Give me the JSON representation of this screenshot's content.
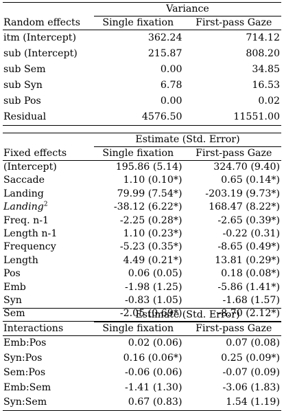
{
  "random": {
    "span_header": "Variance",
    "col0": "Random effects",
    "col1": "Single fixation",
    "col2": "First-pass Gaze",
    "rows": [
      {
        "label": "itm (Intercept)",
        "v1": "362.24",
        "v2": "714.12"
      },
      {
        "label": "sub (Intercept)",
        "v1": "215.87",
        "v2": "808.20"
      },
      {
        "label": "sub Sem",
        "v1": "0.00",
        "v2": "34.85"
      },
      {
        "label": "sub Syn",
        "v1": "6.78",
        "v2": "16.53"
      },
      {
        "label": "sub Pos",
        "v1": "0.00",
        "v2": "0.02"
      },
      {
        "label": "Residual",
        "v1": "4576.50",
        "v2": "11551.00"
      }
    ]
  },
  "fixed": {
    "span_header": "Estimate (Std. Error)",
    "col0": "Fixed effects",
    "col1": "Single fixation",
    "col2": "First-pass Gaze",
    "rows": [
      {
        "label": "(Intercept)",
        "v1": "195.86 (5.14)",
        "v2": "324.70 (9.40)"
      },
      {
        "label": "Saccade",
        "v1": "1.10 (0.10*)",
        "v2": "0.65 (0.14*)"
      },
      {
        "label": "Landing",
        "v1": "79.99 (7.54*)",
        "v2": "-203.19 (9.73*)"
      },
      {
        "label": "Landing",
        "sup": "2",
        "v1": "-38.12 (6.22*)",
        "v2": "168.47 (8.22*)"
      },
      {
        "label": "Freq. n-1",
        "v1": "-2.25 (0.28*)",
        "v2": "-2.65 (0.39*)"
      },
      {
        "label": "Length n-1",
        "v1": "1.10 (0.23*)",
        "v2": "-0.22 (0.31)"
      },
      {
        "label": "Frequency",
        "v1": "-5.23 (0.35*)",
        "v2": "-8.65 (0.49*)"
      },
      {
        "label": "Length",
        "v1": "4.49 (0.21*)",
        "v2": "13.81 (0.29*)"
      },
      {
        "label": "Pos",
        "v1": "0.06 (0.05)",
        "v2": "0.18 (0.08*)"
      },
      {
        "label": "Emb",
        "v1": "-1.98 (1.25)",
        "v2": "-5.86 (1.41*)"
      },
      {
        "label": "Syn",
        "v1": "-0.83 (1.05)",
        "v2": "-1.68 (1.57)"
      },
      {
        "label": "Sem",
        "v1": "-2.05 (0.69*)",
        "v2": "-8.70 (2.12*)"
      }
    ]
  },
  "interactions": {
    "span_header": "Estimate (Std. Error)",
    "col0": "Interactions",
    "col1": "Single fixation",
    "col2": "First-pass Gaze",
    "rows": [
      {
        "label": "Emb:Pos",
        "v1": "0.02 (0.06)",
        "v2": "0.07 (0.08)"
      },
      {
        "label": "Syn:Pos",
        "v1": "0.16 (0.06*)",
        "v2": "0.25 (0.09*)"
      },
      {
        "label": "Sem:Pos",
        "v1": "-0.06 (0.06)",
        "v2": "-0.07 (0.09)"
      },
      {
        "label": "Emb:Sem",
        "v1": "-1.41 (1.30)",
        "v2": "-3.06 (1.83)"
      },
      {
        "label": "Syn:Sem",
        "v1": "0.67 (0.83)",
        "v2": "1.54 (1.19)"
      }
    ]
  }
}
